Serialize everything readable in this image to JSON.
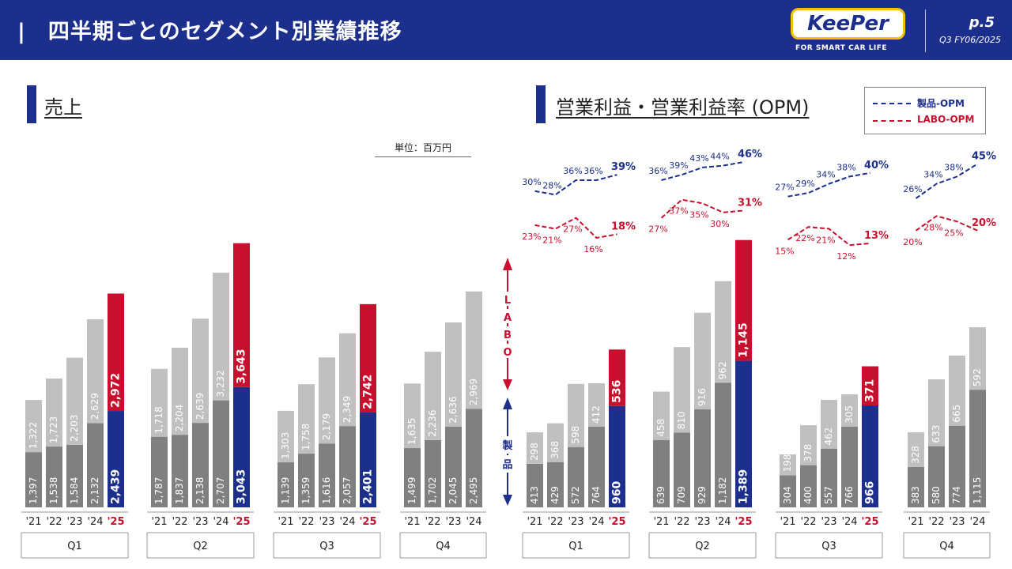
{
  "header": {
    "title": "|　四半期ごとのセグメント別業績推移",
    "page": "p.5",
    "period": "Q3 FY06/2025",
    "logo_text": "KeePer",
    "logo_sub": "FOR SMART CAR LIFE"
  },
  "colors": {
    "header": "#1d2f8c",
    "navy": "#1d2f8c",
    "red": "#c8102e",
    "dark_gray": "#808080",
    "light_gray": "#c0c0c0"
  },
  "sections": {
    "sales_title": "売上",
    "profit_title": "営業利益・営業利益率 (OPM)",
    "unit": "単位：百万円"
  },
  "side_labels": {
    "labo": [
      "L",
      "A",
      "B",
      "O"
    ],
    "product": [
      "製",
      "品"
    ]
  },
  "legend": {
    "product_opm": "製品-OPM",
    "labo_opm": "LABO-OPM"
  },
  "chart_data": [
    {
      "type": "bar",
      "title": "売上",
      "stacked": true,
      "quarters": [
        "Q1",
        "Q2",
        "Q3",
        "Q4"
      ],
      "categories": [
        [
          "'21",
          "'22",
          "'23",
          "'24",
          "'25"
        ],
        [
          "'21",
          "'22",
          "'23",
          "'24",
          "'25"
        ],
        [
          "'21",
          "'22",
          "'23",
          "'24",
          "'25"
        ],
        [
          "'21",
          "'22",
          "'23",
          "'24"
        ]
      ],
      "series": [
        {
          "name": "製品",
          "values": [
            [
              1397,
              1538,
              1584,
              2132,
              2439
            ],
            [
              1787,
              1837,
              2138,
              2707,
              3043
            ],
            [
              1139,
              1359,
              1616,
              2057,
              2401
            ],
            [
              1499,
              1702,
              2045,
              2495
            ]
          ]
        },
        {
          "name": "LABO",
          "values": [
            [
              1322,
              1723,
              2203,
              2629,
              2972
            ],
            [
              1718,
              2204,
              2639,
              3232,
              3643
            ],
            [
              1303,
              1758,
              2179,
              2349,
              2742
            ],
            [
              1635,
              2236,
              2636,
              2969
            ]
          ]
        }
      ],
      "ylim": [
        0,
        6800
      ]
    },
    {
      "type": "bar",
      "title": "営業利益・営業利益率 (OPM)",
      "stacked": true,
      "quarters": [
        "Q1",
        "Q2",
        "Q3",
        "Q4"
      ],
      "categories": [
        [
          "'21",
          "'22",
          "'23",
          "'24",
          "'25"
        ],
        [
          "'21",
          "'22",
          "'23",
          "'24",
          "'25"
        ],
        [
          "'21",
          "'22",
          "'23",
          "'24",
          "'25"
        ],
        [
          "'21",
          "'22",
          "'23",
          "'24"
        ]
      ],
      "series": [
        {
          "name": "製品",
          "values": [
            [
              413,
              429,
              572,
              764,
              960
            ],
            [
              639,
              709,
              929,
              1182,
              1389
            ],
            [
              304,
              400,
              557,
              766,
              966
            ],
            [
              383,
              580,
              774,
              1115
            ]
          ]
        },
        {
          "name": "LABO",
          "values": [
            [
              298,
              368,
              598,
              412,
              536
            ],
            [
              458,
              810,
              916,
              962,
              1145
            ],
            [
              198,
              378,
              462,
              305,
              371
            ],
            [
              328,
              633,
              665,
              592
            ]
          ]
        }
      ],
      "ylim": [
        0,
        2750
      ]
    },
    {
      "type": "line",
      "series": [
        {
          "name": "製品-OPM",
          "values": [
            [
              30,
              28,
              36,
              36,
              39
            ],
            [
              36,
              39,
              43,
              44,
              46
            ],
            [
              27,
              29,
              34,
              38,
              40
            ],
            [
              26,
              34,
              38,
              45
            ]
          ],
          "unit": "%"
        },
        {
          "name": "LABO-OPM",
          "values": [
            [
              23,
              21,
              27,
              16,
              18
            ],
            [
              27,
              37,
              35,
              30,
              31
            ],
            [
              15,
              22,
              21,
              12,
              13
            ],
            [
              20,
              28,
              25,
              20
            ]
          ],
          "unit": "%"
        }
      ]
    }
  ]
}
